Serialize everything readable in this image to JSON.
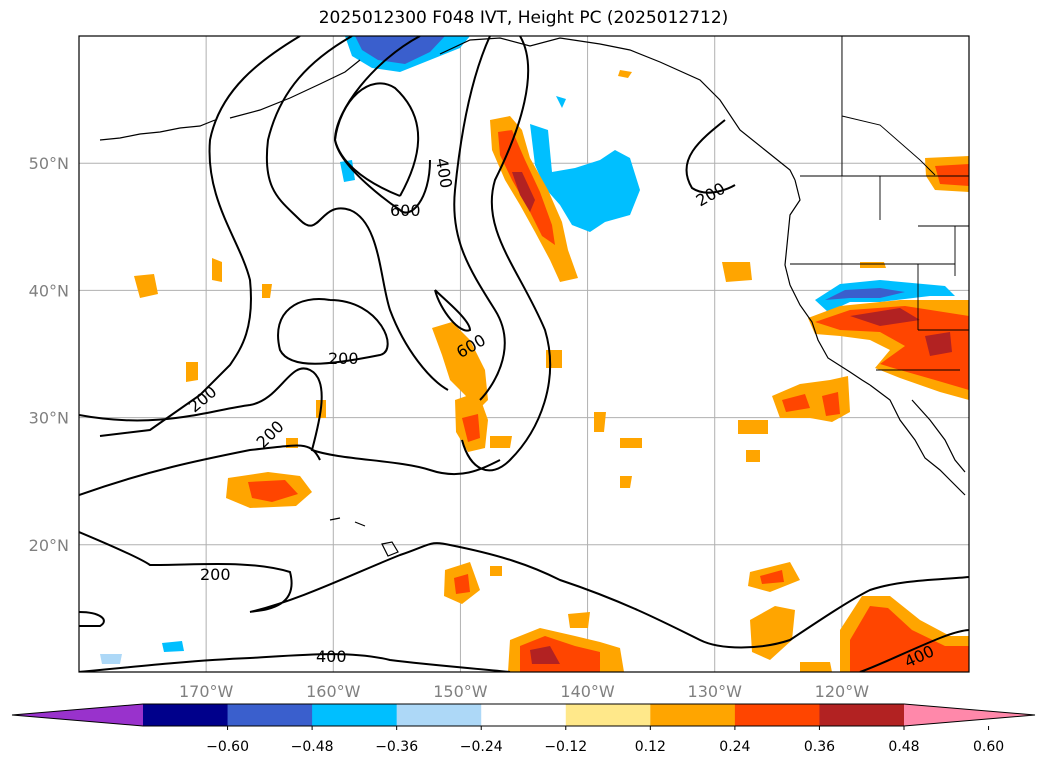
{
  "title": "2025012300 F048 IVT, Height PC (2025012712)",
  "map": {
    "lon_range": [
      -180,
      -110
    ],
    "lat_range": [
      10,
      60
    ],
    "lat_gridlines": [
      20,
      30,
      40,
      50
    ],
    "lon_gridlines": [
      -170,
      -160,
      -150,
      -140,
      -130,
      -120
    ],
    "lat_labels": [
      "20°N",
      "30°N",
      "40°N",
      "50°N"
    ],
    "lon_labels": [
      "170°W",
      "160°W",
      "150°W",
      "140°W",
      "130°W",
      "120°W"
    ],
    "contour_labels": [
      "600",
      "400",
      "200",
      "200",
      "200",
      "200",
      "600",
      "200",
      "400",
      "400"
    ],
    "grid": true
  },
  "colorbar": {
    "tick_labels": [
      "−0.60",
      "−0.48",
      "−0.36",
      "−0.24",
      "−0.12",
      "0.12",
      "0.24",
      "0.36",
      "0.48",
      "0.60"
    ],
    "colors": [
      "#9932cc",
      "#00008b",
      "#3a5fcd",
      "#00bfff",
      "#add8f7",
      "#ffffff",
      "#ffe88a",
      "#ffa500",
      "#ff4500",
      "#b22222",
      "#ff88aa"
    ],
    "extend": "both"
  }
}
